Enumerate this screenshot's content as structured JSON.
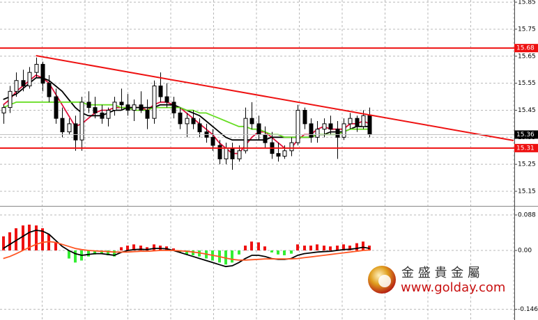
{
  "chart_data": [
    {
      "type": "candlestick",
      "xlim": [
        -0.5,
        78.1
      ],
      "ylim": [
        15.096,
        15.858
      ],
      "yticks": [
        15.85,
        15.75,
        15.65,
        15.55,
        15.45,
        15.35,
        15.25,
        15.15
      ],
      "grid": true,
      "up_color": "#ffffff",
      "down_color": "#000000",
      "outline_color": "#000000",
      "open": [
        15.44,
        15.46,
        15.52,
        15.56,
        15.54,
        15.59,
        15.62,
        15.55,
        15.5,
        15.42,
        15.37,
        15.4,
        15.34,
        15.48,
        15.46,
        15.44,
        15.42,
        15.45,
        15.48,
        15.47,
        15.45,
        15.47,
        15.45,
        15.42,
        15.54,
        15.5,
        15.48,
        15.44,
        15.4,
        15.42,
        15.4,
        15.37,
        15.35,
        15.32,
        15.27,
        15.31,
        15.27,
        15.3,
        15.42,
        15.4,
        15.36,
        15.33,
        15.29,
        15.28,
        15.3,
        15.33,
        15.45,
        15.4,
        15.35,
        15.38,
        15.4,
        15.38,
        15.35,
        15.4,
        15.42,
        15.39,
        15.43
      ],
      "high": [
        15.47,
        15.54,
        15.59,
        15.6,
        15.61,
        15.645,
        15.63,
        15.58,
        15.53,
        15.46,
        15.42,
        15.43,
        15.5,
        15.52,
        15.5,
        15.47,
        15.46,
        15.5,
        15.53,
        15.51,
        15.49,
        15.52,
        15.49,
        15.56,
        15.59,
        15.55,
        15.5,
        15.46,
        15.44,
        15.45,
        15.42,
        15.4,
        15.38,
        15.34,
        15.33,
        15.33,
        15.32,
        15.46,
        15.48,
        15.43,
        15.39,
        15.37,
        15.33,
        15.32,
        15.35,
        15.47,
        15.46,
        15.42,
        15.41,
        15.42,
        15.43,
        15.41,
        15.42,
        15.44,
        15.43,
        15.45,
        15.46
      ],
      "low": [
        15.4,
        15.44,
        15.5,
        15.52,
        15.53,
        15.57,
        15.52,
        15.48,
        15.4,
        15.35,
        15.36,
        15.3,
        15.3,
        15.44,
        15.42,
        15.4,
        15.39,
        15.43,
        15.45,
        15.43,
        15.41,
        15.44,
        15.38,
        15.4,
        15.48,
        15.46,
        15.42,
        15.38,
        15.35,
        15.38,
        15.35,
        15.33,
        15.3,
        15.25,
        15.25,
        15.23,
        15.26,
        15.29,
        15.38,
        15.34,
        15.31,
        15.27,
        15.26,
        15.27,
        15.28,
        15.32,
        15.38,
        15.33,
        15.33,
        15.35,
        15.36,
        15.27,
        15.34,
        15.38,
        15.37,
        15.38,
        15.35
      ],
      "close": [
        15.46,
        15.52,
        15.56,
        15.54,
        15.59,
        15.62,
        15.55,
        15.5,
        15.42,
        15.37,
        15.4,
        15.34,
        15.48,
        15.46,
        15.44,
        15.42,
        15.45,
        15.48,
        15.47,
        15.45,
        15.47,
        15.45,
        15.42,
        15.54,
        15.5,
        15.48,
        15.44,
        15.4,
        15.42,
        15.4,
        15.37,
        15.35,
        15.32,
        15.27,
        15.31,
        15.27,
        15.3,
        15.42,
        15.4,
        15.36,
        15.33,
        15.29,
        15.28,
        15.3,
        15.33,
        15.45,
        15.4,
        15.35,
        15.38,
        15.4,
        15.38,
        15.35,
        15.4,
        15.42,
        15.39,
        15.43,
        15.36
      ],
      "series": [
        {
          "color": "#e0103a",
          "values": [
            15.47,
            15.49,
            15.52,
            15.54,
            15.56,
            15.58,
            15.57,
            15.55,
            15.51,
            15.47,
            15.43,
            15.39,
            15.4,
            15.42,
            15.44,
            15.45,
            15.45,
            15.46,
            15.46,
            15.46,
            15.46,
            15.46,
            15.45,
            15.47,
            15.48,
            15.48,
            15.47,
            15.46,
            15.44,
            15.42,
            15.4,
            15.38,
            15.36,
            15.33,
            15.31,
            15.29,
            15.29,
            15.32,
            15.35,
            15.37,
            15.37,
            15.35,
            15.33,
            15.31,
            15.31,
            15.34,
            15.36,
            15.36,
            15.38,
            15.39,
            15.38,
            15.38,
            15.38,
            15.4,
            15.4,
            15.41,
            15.4
          ]
        },
        {
          "color": "#000000",
          "values": [
            15.49,
            15.5,
            15.51,
            15.53,
            15.55,
            15.57,
            15.57,
            15.56,
            15.54,
            15.52,
            15.49,
            15.46,
            15.44,
            15.43,
            15.43,
            15.43,
            15.44,
            15.45,
            15.45,
            15.46,
            15.46,
            15.46,
            15.46,
            15.46,
            15.47,
            15.47,
            15.47,
            15.46,
            15.45,
            15.44,
            15.43,
            15.41,
            15.39,
            15.37,
            15.35,
            15.34,
            15.34,
            15.34,
            15.34,
            15.34,
            15.34,
            15.35,
            15.35,
            15.35,
            15.35,
            15.35,
            15.35,
            15.35,
            15.36,
            15.36,
            15.37,
            15.37,
            15.37,
            15.38,
            15.39,
            15.39,
            15.39
          ]
        },
        {
          "color": "#66dd22",
          "values": [
            15.46,
            15.47,
            15.48,
            15.48,
            15.48,
            15.48,
            15.48,
            15.48,
            15.48,
            15.48,
            15.48,
            15.48,
            15.48,
            15.47,
            15.47,
            15.47,
            15.47,
            15.47,
            15.46,
            15.46,
            15.45,
            15.45,
            15.45,
            15.46,
            15.46,
            15.46,
            15.46,
            15.46,
            15.45,
            15.45,
            15.44,
            15.44,
            15.43,
            15.42,
            15.41,
            15.4,
            15.39,
            15.39,
            15.38,
            15.38,
            15.37,
            15.36,
            15.36,
            15.35,
            15.35,
            15.35,
            15.35,
            15.35,
            15.36,
            15.36,
            15.36,
            15.36,
            15.37,
            15.38,
            15.38,
            15.38,
            15.38
          ]
        }
      ],
      "trendline": {
        "x": [
          5,
          78
        ],
        "values": [
          15.652,
          15.338
        ],
        "color": "#ee1111"
      },
      "levels": [
        15.68,
        15.31
      ],
      "level_color": "#ee1111",
      "last_price": 15.36,
      "last_price_color": "#000000"
    },
    {
      "type": "macd",
      "ylim": [
        -0.1725,
        0.1087
      ],
      "yticks": [
        0.088,
        {
          "value": 0,
          "label": "0.00"
        },
        {
          "value": -0.146,
          "label": "-0.146"
        }
      ],
      "grid": true,
      "pos_color": "#ee1111",
      "neg_color": "#33ee33",
      "values": [
        0.035,
        0.045,
        0.055,
        0.062,
        0.064,
        0.062,
        0.055,
        0.04,
        0.02,
        0.0,
        -0.02,
        -0.03,
        -0.025,
        -0.015,
        -0.01,
        -0.008,
        -0.012,
        -0.015,
        0.008,
        0.012,
        0.015,
        0.012,
        0.008,
        0.015,
        0.012,
        0.01,
        0.005,
        -0.005,
        -0.01,
        -0.012,
        -0.015,
        -0.02,
        -0.025,
        -0.03,
        -0.035,
        -0.03,
        -0.01,
        0.012,
        0.022,
        0.02,
        0.01,
        -0.005,
        -0.01,
        -0.012,
        -0.008,
        0.015,
        0.012,
        0.012,
        0.015,
        0.012,
        0.01,
        0.012,
        0.015,
        0.012,
        0.018,
        0.022,
        0.012
      ],
      "series": [
        {
          "color": "#000000",
          "values": [
            0.005,
            0.015,
            0.025,
            0.035,
            0.045,
            0.05,
            0.048,
            0.04,
            0.025,
            0.01,
            0.0,
            -0.008,
            -0.012,
            -0.01,
            -0.008,
            -0.008,
            -0.01,
            -0.012,
            -0.005,
            0.0,
            0.002,
            0.003,
            0.002,
            0.005,
            0.005,
            0.004,
            0.0,
            -0.005,
            -0.01,
            -0.015,
            -0.02,
            -0.025,
            -0.03,
            -0.035,
            -0.04,
            -0.038,
            -0.03,
            -0.02,
            -0.012,
            -0.012,
            -0.015,
            -0.02,
            -0.022,
            -0.022,
            -0.02,
            -0.012,
            -0.008,
            -0.006,
            -0.004,
            -0.003,
            -0.002,
            0.0,
            0.002,
            0.003,
            0.005,
            0.008,
            0.005
          ]
        },
        {
          "color": "#ff5522",
          "values": [
            -0.02,
            -0.015,
            -0.008,
            0.0,
            0.008,
            0.015,
            0.02,
            0.022,
            0.02,
            0.015,
            0.01,
            0.005,
            0.002,
            0.0,
            -0.001,
            -0.002,
            -0.003,
            -0.004,
            -0.004,
            -0.004,
            -0.003,
            -0.002,
            -0.002,
            -0.001,
            0.0,
            0.0,
            0.0,
            -0.001,
            -0.002,
            -0.004,
            -0.006,
            -0.009,
            -0.012,
            -0.015,
            -0.019,
            -0.022,
            -0.024,
            -0.024,
            -0.023,
            -0.022,
            -0.021,
            -0.021,
            -0.021,
            -0.021,
            -0.021,
            -0.02,
            -0.018,
            -0.016,
            -0.014,
            -0.012,
            -0.01,
            -0.008,
            -0.006,
            -0.004,
            -0.002,
            0.0,
            0.001
          ]
        }
      ]
    }
  ],
  "watermark": {
    "name": "金 盛 貴 金 屬",
    "url": "www.golday.com"
  }
}
